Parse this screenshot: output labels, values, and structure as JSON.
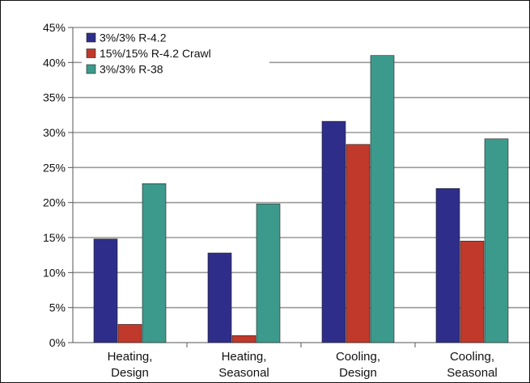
{
  "chart_data": {
    "type": "bar",
    "categories": [
      [
        "Heating,",
        "Design"
      ],
      [
        "Heating,",
        "Seasonal"
      ],
      [
        "Cooling,",
        "Design"
      ],
      [
        "Cooling,",
        "Seasonal"
      ]
    ],
    "series": [
      {
        "name": "3%/3% R-4.2",
        "color": "#2e2e8a",
        "values": [
          14.8,
          12.8,
          31.6,
          22.0
        ]
      },
      {
        "name": "15%/15% R-4.2 Crawl",
        "color": "#c0392b",
        "values": [
          2.6,
          1.0,
          28.3,
          14.5
        ]
      },
      {
        "name": "3%/3% R-38",
        "color": "#3c9a8c",
        "values": [
          22.7,
          19.8,
          41.0,
          29.1
        ]
      }
    ],
    "y_ticks": [
      "0%",
      "5%",
      "10%",
      "15%",
      "20%",
      "25%",
      "30%",
      "35%",
      "40%",
      "45%"
    ],
    "ylim": [
      0,
      45
    ],
    "grid": true,
    "legend_position": "top-left",
    "title": "",
    "xlabel": "",
    "ylabel": ""
  }
}
